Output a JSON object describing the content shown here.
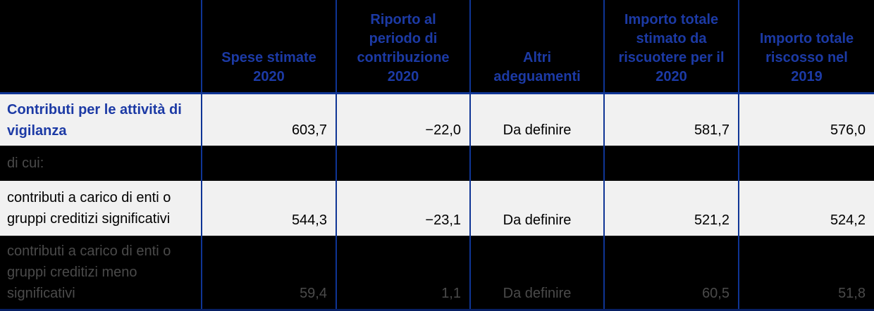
{
  "table": {
    "header": {
      "col0": "",
      "col1": "Spese stimate 2020",
      "col2": "Riporto al periodo di contribuzione 2020",
      "col3": "Altri adeguamenti",
      "col4": "Importo totale stimato da riscuotere per il 2020",
      "col5": "Importo totale riscosso nel 2019"
    },
    "rows": [
      {
        "label": "Contributi per le attività di vigilanza",
        "values": [
          "603,7",
          "−22,0",
          "Da definire",
          "581,7",
          "576,0"
        ]
      },
      {
        "label": "di cui:",
        "values": [
          "",
          "",
          "",
          "",
          ""
        ]
      },
      {
        "label": "contributi a carico di enti o gruppi creditizi significativi",
        "values": [
          "544,3",
          "−23,1",
          "Da definire",
          "521,2",
          "524,2"
        ]
      },
      {
        "label": "contributi a carico di enti o gruppi creditizi meno significativi",
        "values": [
          "59,4",
          "1,1",
          "Da definire",
          "60,5",
          "51,8"
        ]
      }
    ],
    "colors": {
      "header_text": "#1c3aa5",
      "grid_line": "#0f3595",
      "light_row_bg": "#f1f1f1",
      "light_row_text": "#000000",
      "dark_row_bg": "#000000",
      "dark_row_text": "#4a4a4a",
      "bottom_border": "#071f63"
    }
  }
}
